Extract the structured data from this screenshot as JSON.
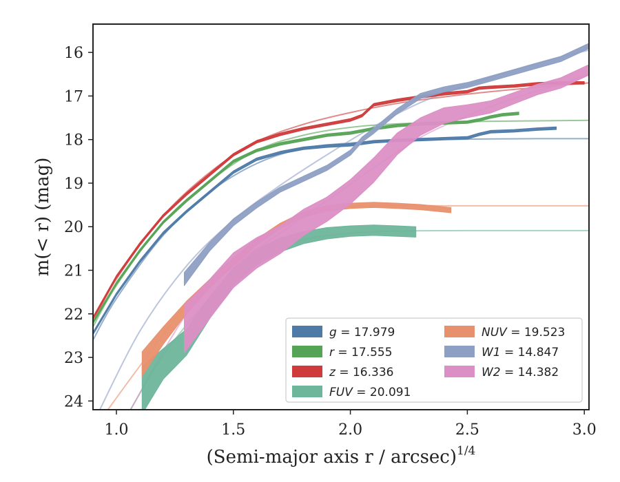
{
  "chart_data": {
    "type": "line",
    "xlabel": "(Semi-major axis r / arcsec)",
    "xlabel_exponent": "1/4",
    "ylabel": "m(< r) (mag)",
    "xlim": [
      0.9,
      3.02
    ],
    "ylim": [
      24.2,
      15.35
    ],
    "y_inverted": true,
    "grid": false,
    "legend_position": "lower-right",
    "x_ticks": [
      1.0,
      1.5,
      2.0,
      2.5,
      3.0
    ],
    "x_tick_labels": [
      "1.0",
      "1.5",
      "2.0",
      "2.5",
      "3.0"
    ],
    "y_ticks": [
      16,
      17,
      18,
      19,
      20,
      21,
      22,
      23,
      24
    ],
    "y_tick_labels": [
      "16",
      "17",
      "18",
      "19",
      "20",
      "21",
      "22",
      "23",
      "24"
    ],
    "series": [
      {
        "name": "g = 17.979",
        "legend_var": "g",
        "legend_value": "= 17.979",
        "color": "#4e7aa8",
        "observed": [
          [
            0.9,
            22.45
          ],
          [
            1.0,
            21.55
          ],
          [
            1.1,
            20.8
          ],
          [
            1.2,
            20.15
          ],
          [
            1.3,
            19.65
          ],
          [
            1.4,
            19.2
          ],
          [
            1.5,
            18.75
          ],
          [
            1.6,
            18.45
          ],
          [
            1.7,
            18.3
          ],
          [
            1.8,
            18.2
          ],
          [
            1.9,
            18.15
          ],
          [
            2.0,
            18.12
          ],
          [
            2.1,
            18.05
          ],
          [
            2.2,
            18.02
          ],
          [
            2.3,
            18.0
          ],
          [
            2.4,
            17.98
          ],
          [
            2.5,
            17.96
          ],
          [
            2.55,
            17.88
          ],
          [
            2.6,
            17.82
          ],
          [
            2.7,
            17.8
          ],
          [
            2.8,
            17.76
          ],
          [
            2.88,
            17.74
          ]
        ],
        "width": [
          0.03,
          0.03,
          0.03,
          0.03,
          0.03,
          0.03,
          0.03,
          0.03,
          0.03,
          0.03,
          0.03,
          0.03,
          0.03,
          0.03,
          0.03,
          0.03,
          0.03,
          0.03,
          0.03,
          0.03,
          0.03,
          0.03
        ],
        "model": [
          [
            0.9,
            22.6
          ],
          [
            1.0,
            21.65
          ],
          [
            1.2,
            20.2
          ],
          [
            1.4,
            19.2
          ],
          [
            1.6,
            18.55
          ],
          [
            1.8,
            18.2
          ],
          [
            2.0,
            18.08
          ],
          [
            2.2,
            18.02
          ],
          [
            2.5,
            17.99
          ],
          [
            2.8,
            17.98
          ],
          [
            3.02,
            17.98
          ]
        ]
      },
      {
        "name": "r = 17.555",
        "legend_var": "r",
        "legend_value": "= 17.555",
        "color": "#55a355",
        "observed": [
          [
            0.9,
            22.2
          ],
          [
            1.0,
            21.3
          ],
          [
            1.1,
            20.55
          ],
          [
            1.2,
            19.9
          ],
          [
            1.3,
            19.4
          ],
          [
            1.4,
            18.95
          ],
          [
            1.5,
            18.5
          ],
          [
            1.6,
            18.25
          ],
          [
            1.7,
            18.1
          ],
          [
            1.8,
            18.0
          ],
          [
            1.9,
            17.9
          ],
          [
            2.0,
            17.85
          ],
          [
            2.1,
            17.75
          ],
          [
            2.2,
            17.68
          ],
          [
            2.3,
            17.64
          ],
          [
            2.4,
            17.62
          ],
          [
            2.5,
            17.6
          ],
          [
            2.55,
            17.55
          ],
          [
            2.6,
            17.48
          ],
          [
            2.65,
            17.43
          ],
          [
            2.72,
            17.4
          ]
        ],
        "width": [
          0.03,
          0.03,
          0.03,
          0.03,
          0.03,
          0.03,
          0.03,
          0.03,
          0.03,
          0.03,
          0.03,
          0.03,
          0.03,
          0.03,
          0.03,
          0.03,
          0.03,
          0.03,
          0.03,
          0.03,
          0.03
        ],
        "model": [
          [
            0.9,
            22.3
          ],
          [
            1.0,
            21.35
          ],
          [
            1.2,
            19.9
          ],
          [
            1.4,
            18.95
          ],
          [
            1.6,
            18.25
          ],
          [
            1.8,
            17.9
          ],
          [
            2.0,
            17.72
          ],
          [
            2.2,
            17.64
          ],
          [
            2.5,
            17.59
          ],
          [
            2.8,
            17.57
          ],
          [
            3.02,
            17.56
          ]
        ]
      },
      {
        "name": "z = 16.336",
        "legend_var": "z",
        "legend_value": "= 16.336",
        "color": "#cf3a3a",
        "observed": [
          [
            0.9,
            22.1
          ],
          [
            1.0,
            21.15
          ],
          [
            1.1,
            20.4
          ],
          [
            1.2,
            19.75
          ],
          [
            1.3,
            19.25
          ],
          [
            1.4,
            18.8
          ],
          [
            1.5,
            18.35
          ],
          [
            1.6,
            18.05
          ],
          [
            1.7,
            17.88
          ],
          [
            1.8,
            17.75
          ],
          [
            1.9,
            17.65
          ],
          [
            1.95,
            17.6
          ],
          [
            2.0,
            17.55
          ],
          [
            2.05,
            17.45
          ],
          [
            2.1,
            17.2
          ],
          [
            2.2,
            17.1
          ],
          [
            2.3,
            17.02
          ],
          [
            2.4,
            16.95
          ],
          [
            2.5,
            16.9
          ],
          [
            2.55,
            16.82
          ],
          [
            2.6,
            16.8
          ],
          [
            2.7,
            16.77
          ],
          [
            2.8,
            16.72
          ],
          [
            2.9,
            16.7
          ],
          [
            3.0,
            16.7
          ]
        ],
        "width": [
          0.03,
          0.03,
          0.03,
          0.03,
          0.03,
          0.03,
          0.03,
          0.03,
          0.03,
          0.03,
          0.03,
          0.03,
          0.03,
          0.03,
          0.03,
          0.03,
          0.03,
          0.03,
          0.03,
          0.03,
          0.03,
          0.03,
          0.03,
          0.03,
          0.03
        ],
        "model": [
          [
            0.9,
            22.2
          ],
          [
            1.0,
            21.2
          ],
          [
            1.2,
            19.75
          ],
          [
            1.4,
            18.75
          ],
          [
            1.6,
            18.05
          ],
          [
            1.8,
            17.65
          ],
          [
            2.0,
            17.38
          ],
          [
            2.2,
            17.17
          ],
          [
            2.4,
            17.02
          ],
          [
            2.6,
            16.9
          ],
          [
            2.8,
            16.8
          ],
          [
            3.02,
            16.7
          ]
        ]
      },
      {
        "name": "FUV = 20.091",
        "legend_var": "FUV",
        "legend_value": "= 20.091",
        "color": "#6db59b",
        "observed": [
          [
            1.11,
            23.75
          ],
          [
            1.2,
            23.15
          ],
          [
            1.3,
            22.65
          ],
          [
            1.4,
            21.85
          ],
          [
            1.5,
            21.15
          ],
          [
            1.6,
            20.7
          ],
          [
            1.7,
            20.42
          ],
          [
            1.8,
            20.25
          ],
          [
            1.9,
            20.15
          ],
          [
            2.0,
            20.1
          ],
          [
            2.1,
            20.08
          ],
          [
            2.2,
            20.1
          ],
          [
            2.28,
            20.12
          ]
        ],
        "width": [
          0.55,
          0.35,
          0.3,
          0.25,
          0.2,
          0.18,
          0.16,
          0.14,
          0.13,
          0.12,
          0.12,
          0.12,
          0.12
        ],
        "model": [
          [
            1.05,
            24.3
          ],
          [
            1.2,
            22.95
          ],
          [
            1.4,
            21.65
          ],
          [
            1.6,
            20.75
          ],
          [
            1.8,
            20.3
          ],
          [
            2.0,
            20.15
          ],
          [
            2.2,
            20.1
          ],
          [
            2.5,
            20.09
          ],
          [
            3.02,
            20.09
          ]
        ]
      },
      {
        "name": "NUV = 19.523",
        "legend_var": "NUV",
        "legend_value": "= 19.523",
        "color": "#e8906e",
        "observed": [
          [
            1.11,
            23.15
          ],
          [
            1.2,
            22.5
          ],
          [
            1.3,
            21.85
          ],
          [
            1.4,
            21.3
          ],
          [
            1.5,
            20.8
          ],
          [
            1.6,
            20.35
          ],
          [
            1.7,
            19.98
          ],
          [
            1.8,
            19.72
          ],
          [
            1.9,
            19.58
          ],
          [
            2.0,
            19.52
          ],
          [
            2.1,
            19.5
          ],
          [
            2.2,
            19.52
          ],
          [
            2.3,
            19.55
          ],
          [
            2.43,
            19.62
          ]
        ],
        "width": [
          0.28,
          0.2,
          0.14,
          0.1,
          0.08,
          0.07,
          0.06,
          0.06,
          0.06,
          0.06,
          0.06,
          0.06,
          0.06,
          0.06
        ],
        "model": [
          [
            0.95,
            24.3
          ],
          [
            1.1,
            23.2
          ],
          [
            1.3,
            21.8
          ],
          [
            1.5,
            20.75
          ],
          [
            1.7,
            19.95
          ],
          [
            1.9,
            19.6
          ],
          [
            2.1,
            19.52
          ],
          [
            2.5,
            19.52
          ],
          [
            3.02,
            19.52
          ]
        ]
      },
      {
        "name": "W1 = 14.847",
        "legend_var": "W1",
        "legend_value": "= 14.847",
        "color": "#8e9fc4",
        "observed": [
          [
            1.29,
            21.2
          ],
          [
            1.4,
            20.45
          ],
          [
            1.5,
            19.9
          ],
          [
            1.6,
            19.5
          ],
          [
            1.7,
            19.15
          ],
          [
            1.8,
            18.9
          ],
          [
            1.9,
            18.65
          ],
          [
            2.0,
            18.3
          ],
          [
            2.05,
            18.0
          ],
          [
            2.1,
            17.8
          ],
          [
            2.2,
            17.35
          ],
          [
            2.3,
            17.0
          ],
          [
            2.4,
            16.85
          ],
          [
            2.5,
            16.75
          ],
          [
            2.6,
            16.6
          ],
          [
            2.7,
            16.45
          ],
          [
            2.8,
            16.3
          ],
          [
            2.9,
            16.15
          ],
          [
            3.02,
            15.85
          ]
        ],
        "width": [
          0.15,
          0.1,
          0.08,
          0.07,
          0.06,
          0.06,
          0.06,
          0.06,
          0.06,
          0.06,
          0.06,
          0.06,
          0.06,
          0.06,
          0.06,
          0.06,
          0.06,
          0.06,
          0.06
        ],
        "model": [
          [
            0.92,
            24.3
          ],
          [
            1.1,
            22.4
          ],
          [
            1.3,
            20.9
          ],
          [
            1.5,
            19.85
          ],
          [
            1.7,
            19.05
          ],
          [
            1.9,
            18.35
          ],
          [
            2.1,
            17.7
          ],
          [
            2.3,
            17.15
          ],
          [
            2.5,
            16.75
          ],
          [
            2.7,
            16.4
          ],
          [
            2.9,
            16.1
          ],
          [
            3.02,
            15.95
          ]
        ]
      },
      {
        "name": "W2 = 14.382",
        "legend_var": "W2",
        "legend_value": "= 14.382",
        "color": "#dc8fc5",
        "observed": [
          [
            1.29,
            22.35
          ],
          [
            1.4,
            21.65
          ],
          [
            1.5,
            21.0
          ],
          [
            1.6,
            20.6
          ],
          [
            1.7,
            20.3
          ],
          [
            1.8,
            19.9
          ],
          [
            1.9,
            19.6
          ],
          [
            2.0,
            19.2
          ],
          [
            2.1,
            18.7
          ],
          [
            2.2,
            18.1
          ],
          [
            2.3,
            17.7
          ],
          [
            2.4,
            17.45
          ],
          [
            2.5,
            17.35
          ],
          [
            2.6,
            17.25
          ],
          [
            2.7,
            17.05
          ],
          [
            2.8,
            16.85
          ],
          [
            2.9,
            16.7
          ],
          [
            3.02,
            16.4
          ]
        ],
        "width": [
          0.55,
          0.45,
          0.4,
          0.35,
          0.32,
          0.3,
          0.28,
          0.28,
          0.28,
          0.25,
          0.2,
          0.18,
          0.15,
          0.14,
          0.13,
          0.12,
          0.12,
          0.12
        ],
        "model": [
          [
            1.05,
            24.3
          ],
          [
            1.3,
            22.0
          ],
          [
            1.5,
            20.9
          ],
          [
            1.7,
            20.15
          ],
          [
            1.9,
            19.4
          ],
          [
            2.1,
            18.65
          ],
          [
            2.3,
            17.95
          ],
          [
            2.5,
            17.45
          ],
          [
            2.7,
            17.05
          ],
          [
            2.9,
            16.72
          ],
          [
            3.02,
            16.5
          ]
        ]
      }
    ]
  }
}
